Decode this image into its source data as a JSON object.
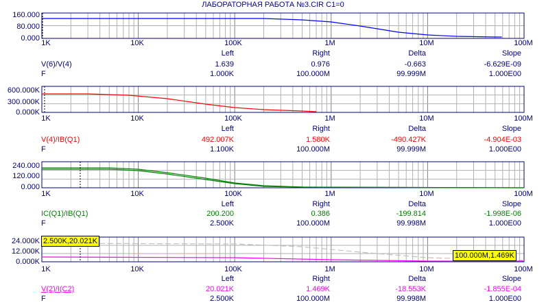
{
  "window": {
    "title": "ЛАБОРАТОРНАЯ РАБОТА №3.CIR C1=0"
  },
  "colors": {
    "axis": "#000080",
    "grid": "#a0a0a0",
    "panel1_trace": "#0000ff",
    "panel2_trace": "#ff0000",
    "panel3_trace": "#008000",
    "panel4_trace": "#ff00ff",
    "panel4_secondary": "#c0c0c0",
    "tag_bg": "#ffff00"
  },
  "x_axis": {
    "labels": [
      "1K",
      "10K",
      "100K",
      "1M",
      "10M",
      "100M"
    ]
  },
  "table_headers": [
    "Left",
    "Right",
    "Delta",
    "Slope"
  ],
  "panels": [
    {
      "y_labels": [
        "160.000",
        "80.000",
        "0.000"
      ],
      "trace": {
        "expr": "V(6)/V(4)",
        "left": "1.639",
        "right": "0.976",
        "delta": "-0.663",
        "slope": "-6.629E-09"
      },
      "f": {
        "label": "F",
        "left": "1.000K",
        "right": "100.000M",
        "delta": "99.999M",
        "slope": "1.000E00"
      }
    },
    {
      "y_labels": [
        "600.000K",
        "300.000K",
        "0.000K"
      ],
      "trace": {
        "expr": "V(4)/IB(Q1)",
        "left": "492.007K",
        "right": "1.580K",
        "delta": "-490.427K",
        "slope": "-4.904E-03"
      },
      "f": {
        "label": "F",
        "left": "1.100K",
        "right": "100.000M",
        "delta": "99.999M",
        "slope": "1.000E00"
      }
    },
    {
      "y_labels": [
        "240.000",
        "120.000",
        "0.000"
      ],
      "trace": {
        "expr": "IC(Q1)/IB(Q1)",
        "left": "200.200",
        "right": "0.386",
        "delta": "-199.814",
        "slope": "-1.998E-06"
      },
      "f": {
        "label": "F",
        "left": "2.500K",
        "right": "100.000M",
        "delta": "99.998M",
        "slope": "1.000E00"
      }
    },
    {
      "y_labels": [
        "24.000K",
        "12.000K",
        "0.000K"
      ],
      "trace": {
        "expr": "V(2)/I(C2)",
        "left": "20.021K",
        "right": "1.469K",
        "delta": "-18.553K",
        "slope": "-1.855E-04"
      },
      "f": {
        "label": "F",
        "left": "2.500K",
        "right": "100.000M",
        "delta": "99.998M",
        "slope": "1.000E00"
      },
      "cursor_tags": {
        "left": "2.500K,20.021K",
        "right": "100.000M,1.469K"
      }
    }
  ]
}
